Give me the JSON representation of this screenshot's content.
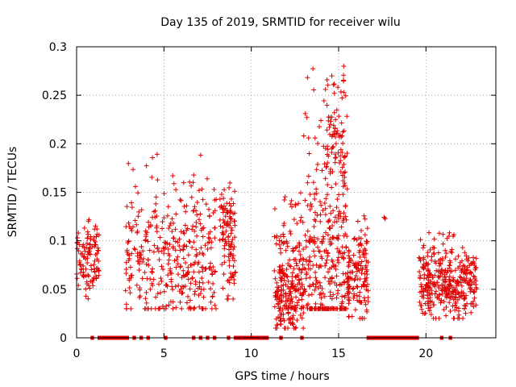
{
  "chart_data": {
    "type": "scatter",
    "title": "Day 135 of 2019, SRMTID for receiver wilu",
    "xlabel": "GPS time / hours",
    "ylabel": "SRMTID / TECUs",
    "xlim": [
      0,
      24
    ],
    "ylim": [
      0,
      0.3
    ],
    "x_ticks": [
      0,
      5,
      10,
      15,
      20
    ],
    "y_ticks": [
      0,
      0.05,
      0.1,
      0.15,
      0.2,
      0.25,
      0.3
    ],
    "x_tick_labels": [
      "0",
      "5",
      "10",
      "15",
      "20"
    ],
    "y_tick_labels": [
      "0",
      "0.05",
      "0.1",
      "0.15",
      "0.2",
      "0.25",
      "0.3"
    ],
    "grid": true,
    "marker": "+",
    "color": "#e00000",
    "clusters": [
      {
        "x_start": 0.0,
        "x_end": 1.3,
        "y_min": 0.04,
        "y_max": 0.13,
        "y_center": 0.08,
        "count": 110
      },
      {
        "x_start": 2.8,
        "x_end": 8.0,
        "y_min": 0.03,
        "y_max": 0.19,
        "y_center": 0.08,
        "count": 380
      },
      {
        "x_start": 8.2,
        "x_end": 9.1,
        "y_min": 0.04,
        "y_max": 0.17,
        "y_center": 0.1,
        "count": 110
      },
      {
        "x_start": 11.3,
        "x_end": 13.0,
        "y_min": 0.01,
        "y_max": 0.15,
        "y_center": 0.05,
        "count": 250
      },
      {
        "x_start": 13.0,
        "x_end": 15.5,
        "y_min": 0.03,
        "y_max": 0.28,
        "y_center": 0.08,
        "count": 320
      },
      {
        "x_start": 14.3,
        "x_end": 15.4,
        "y_min": 0.1,
        "y_max": 0.28,
        "y_center": 0.2,
        "count": 70
      },
      {
        "x_start": 15.5,
        "x_end": 16.7,
        "y_min": 0.02,
        "y_max": 0.13,
        "y_center": 0.06,
        "count": 140
      },
      {
        "x_start": 17.5,
        "x_end": 17.7,
        "y_min": 0.11,
        "y_max": 0.13,
        "y_center": 0.12,
        "count": 3
      },
      {
        "x_start": 19.6,
        "x_end": 22.9,
        "y_min": 0.02,
        "y_max": 0.11,
        "y_center": 0.055,
        "count": 360
      }
    ],
    "zero_segments": [
      [
        0.8,
        1.0
      ],
      [
        1.2,
        3.0
      ],
      [
        3.2,
        3.4
      ],
      [
        3.6,
        3.8
      ],
      [
        4.0,
        4.2
      ],
      [
        5.0,
        5.2
      ],
      [
        6.6,
        6.8
      ],
      [
        7.0,
        7.2
      ],
      [
        7.4,
        7.6
      ],
      [
        7.8,
        8.0
      ],
      [
        8.6,
        8.8
      ],
      [
        9.0,
        11.0
      ],
      [
        11.6,
        11.8
      ],
      [
        12.8,
        13.0
      ],
      [
        16.6,
        19.6
      ],
      [
        20.8,
        21.0
      ],
      [
        21.3,
        21.5
      ]
    ]
  }
}
